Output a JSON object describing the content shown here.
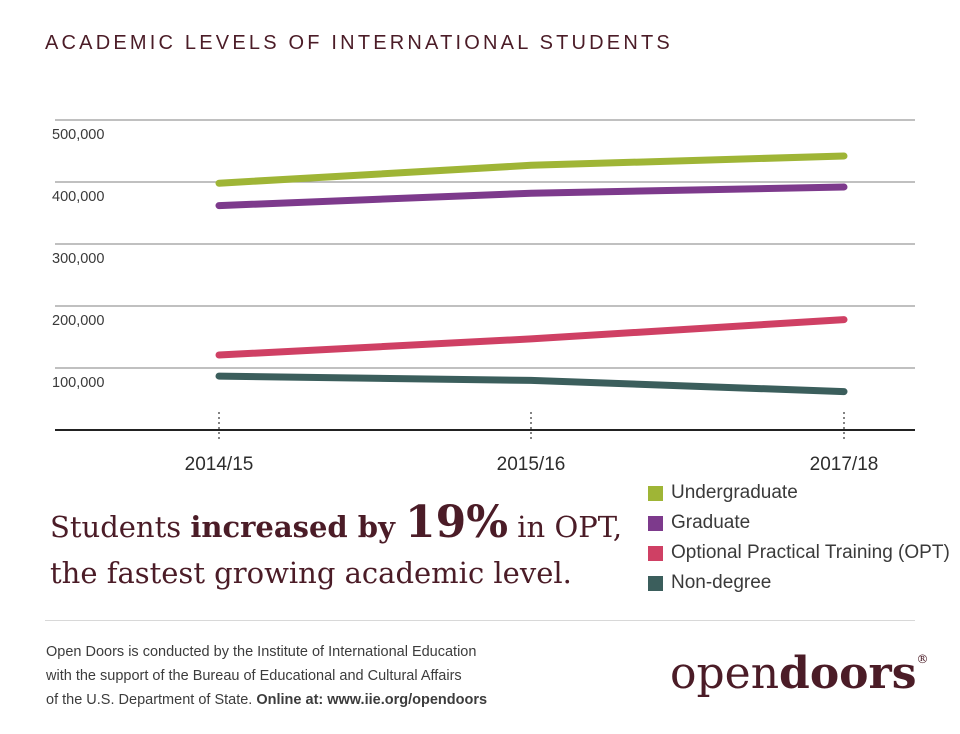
{
  "chart_data": {
    "type": "line",
    "title": "ACADEMIC LEVELS OF INTERNATIONAL STUDENTS",
    "categories": [
      "2014/15",
      "2015/16",
      "2017/18"
    ],
    "ylim": [
      0,
      500000
    ],
    "yticks": [
      "100,000",
      "200,000",
      "300,000",
      "400,000",
      "500,000"
    ],
    "ytick_values": [
      100000,
      200000,
      300000,
      400000,
      500000
    ],
    "grid": true,
    "legend_position": "bottom-right",
    "series": [
      {
        "name": "Undergraduate",
        "color": "#9fb536",
        "values": [
          398000,
          427000,
          442000
        ]
      },
      {
        "name": "Graduate",
        "color": "#7d3a8c",
        "values": [
          362000,
          382000,
          392000
        ]
      },
      {
        "name": "Optional Practical Training (OPT)",
        "color": "#cf4064",
        "values": [
          121000,
          147000,
          178000
        ]
      },
      {
        "name": "Non-degree",
        "color": "#3b5e5c",
        "values": [
          87000,
          80000,
          62000
        ]
      }
    ]
  },
  "headline": {
    "part1": "Students ",
    "strong": "increased by ",
    "big": "19%",
    "part2": " in OPT,",
    "line2": "the fastest growing academic level."
  },
  "footer": {
    "line1": "Open Doors is conducted by the Institute of International Education",
    "line2": "with the support of the Bureau of Educational and Cultural Affairs",
    "line3_plain": "of the U.S. Department of State. ",
    "line3_bold": "Online at: www.iie.org/opendoors"
  },
  "logo": {
    "part_light": "open",
    "part_bold": "doors",
    "reg": "®"
  }
}
